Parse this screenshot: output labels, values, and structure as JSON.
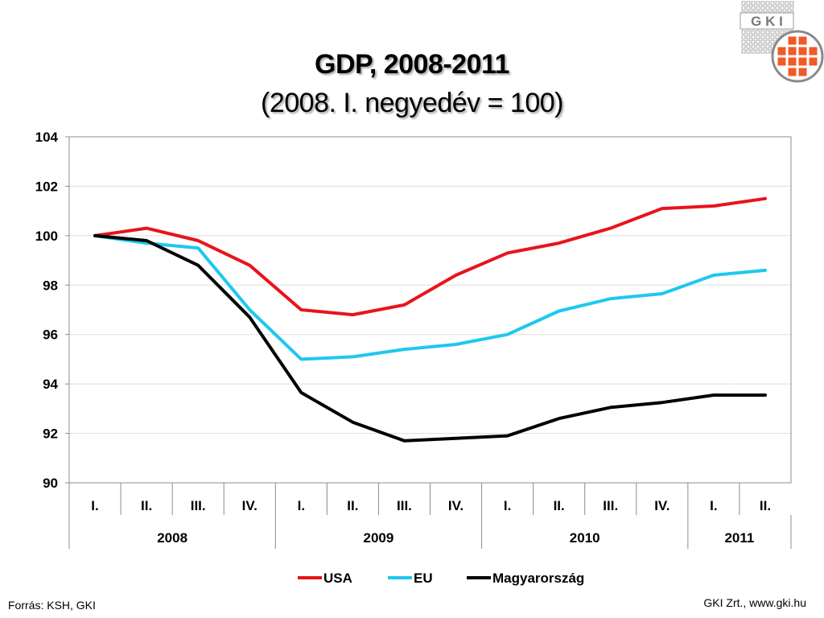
{
  "title": "GDP, 2008-2011",
  "subtitle": "(2008. I. negyedév = 100)",
  "source": "Forrás: KSH, GKI",
  "credit": "GKI Zrt., www.gki.hu",
  "logo_text": "G K I",
  "colors": {
    "usa": "#e8141b",
    "eu": "#1ec8f0",
    "hungary": "#000000",
    "logo_orange": "#f05a28",
    "grid": "#bdbdbd"
  },
  "chart_data": {
    "type": "line",
    "yticks": [
      90,
      92,
      94,
      96,
      98,
      100,
      102,
      104
    ],
    "ylim": [
      90,
      104
    ],
    "categories": [
      "I.",
      "II.",
      "III.",
      "IV.",
      "I.",
      "II.",
      "III.",
      "IV.",
      "I.",
      "II.",
      "III.",
      "IV.",
      "I.",
      "II."
    ],
    "years": [
      {
        "label": "2008",
        "span": 4
      },
      {
        "label": "2009",
        "span": 4
      },
      {
        "label": "2010",
        "span": 4
      },
      {
        "label": "2011",
        "span": 2
      }
    ],
    "series": [
      {
        "name": "USA",
        "color": "#e8141b",
        "values": [
          100.0,
          100.3,
          99.8,
          98.8,
          97.0,
          96.8,
          97.2,
          98.4,
          99.3,
          99.7,
          100.3,
          101.1,
          101.2,
          101.5
        ]
      },
      {
        "name": "EU",
        "color": "#1ec8f0",
        "values": [
          100.0,
          99.7,
          99.5,
          97.0,
          95.0,
          95.1,
          95.4,
          95.6,
          96.0,
          96.95,
          97.45,
          97.65,
          98.4,
          98.6
        ]
      },
      {
        "name": "Magyarország",
        "color": "#000000",
        "values": [
          100.0,
          99.8,
          98.8,
          96.7,
          93.65,
          92.45,
          91.7,
          91.8,
          91.9,
          92.6,
          93.05,
          93.25,
          93.55,
          93.55
        ]
      }
    ],
    "legend_position": "bottom-center",
    "grid": true
  }
}
